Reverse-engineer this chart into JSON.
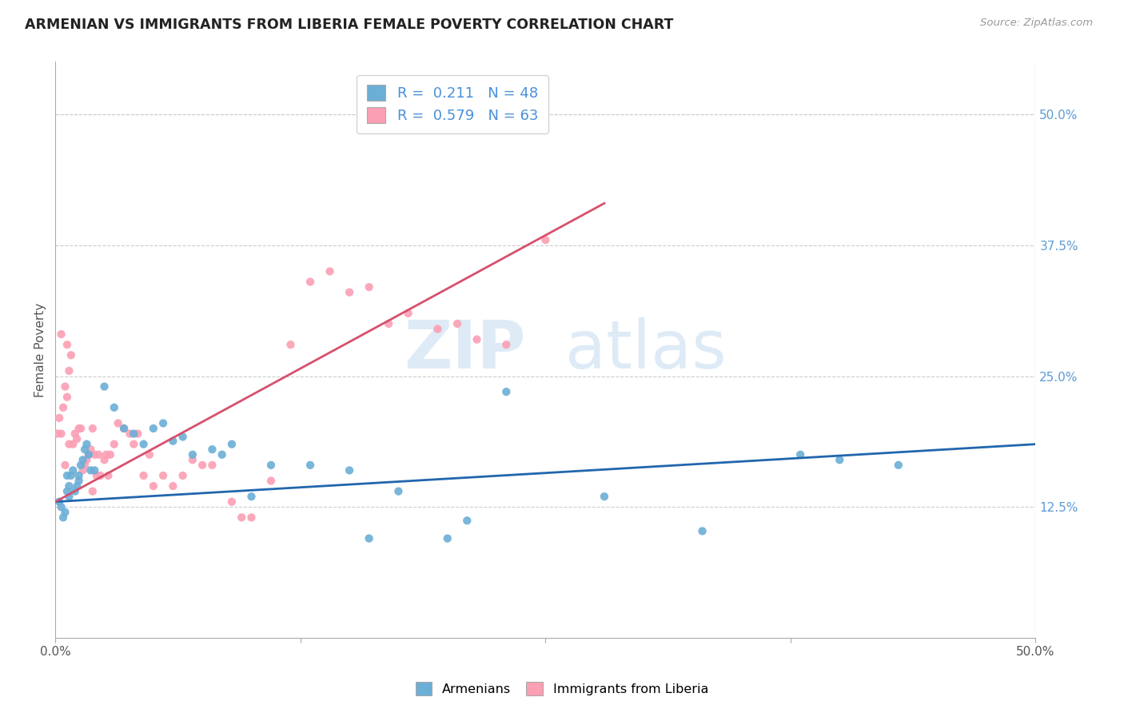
{
  "title": "ARMENIAN VS IMMIGRANTS FROM LIBERIA FEMALE POVERTY CORRELATION CHART",
  "source": "Source: ZipAtlas.com",
  "ylabel": "Female Poverty",
  "ytick_values": [
    0.125,
    0.25,
    0.375,
    0.5
  ],
  "xlim": [
    0.0,
    0.5
  ],
  "ylim": [
    0.0,
    0.55
  ],
  "legend_r_armenian": "0.211",
  "legend_n_armenian": "48",
  "legend_r_liberia": "0.579",
  "legend_n_liberia": "63",
  "armenian_color": "#6baed6",
  "liberia_color": "#fb9fb4",
  "armenian_line_color": "#2166ac",
  "liberia_line_color": "#d6506e",
  "background_color": "#ffffff",
  "watermark_zip": "ZIP",
  "watermark_atlas": "atlas",
  "armenian_x": [
    0.002,
    0.003,
    0.004,
    0.005,
    0.006,
    0.006,
    0.007,
    0.007,
    0.008,
    0.009,
    0.01,
    0.011,
    0.012,
    0.012,
    0.013,
    0.014,
    0.015,
    0.016,
    0.017,
    0.018,
    0.02,
    0.025,
    0.03,
    0.035,
    0.04,
    0.045,
    0.05,
    0.055,
    0.06,
    0.065,
    0.07,
    0.08,
    0.085,
    0.09,
    0.1,
    0.11,
    0.13,
    0.15,
    0.16,
    0.175,
    0.2,
    0.21,
    0.23,
    0.28,
    0.33,
    0.38,
    0.4,
    0.43
  ],
  "armenian_y": [
    0.13,
    0.125,
    0.115,
    0.12,
    0.14,
    0.155,
    0.135,
    0.145,
    0.155,
    0.16,
    0.14,
    0.145,
    0.155,
    0.15,
    0.165,
    0.17,
    0.18,
    0.185,
    0.175,
    0.16,
    0.16,
    0.24,
    0.22,
    0.2,
    0.195,
    0.185,
    0.2,
    0.205,
    0.188,
    0.192,
    0.175,
    0.18,
    0.175,
    0.185,
    0.135,
    0.165,
    0.165,
    0.16,
    0.095,
    0.14,
    0.095,
    0.112,
    0.235,
    0.135,
    0.102,
    0.175,
    0.17,
    0.165
  ],
  "liberia_x": [
    0.001,
    0.002,
    0.003,
    0.003,
    0.004,
    0.005,
    0.005,
    0.006,
    0.006,
    0.007,
    0.007,
    0.008,
    0.009,
    0.01,
    0.011,
    0.012,
    0.013,
    0.014,
    0.015,
    0.016,
    0.017,
    0.018,
    0.019,
    0.019,
    0.02,
    0.021,
    0.022,
    0.023,
    0.025,
    0.026,
    0.027,
    0.028,
    0.03,
    0.032,
    0.035,
    0.038,
    0.04,
    0.042,
    0.045,
    0.048,
    0.05,
    0.055,
    0.06,
    0.065,
    0.07,
    0.075,
    0.08,
    0.09,
    0.095,
    0.1,
    0.11,
    0.12,
    0.13,
    0.14,
    0.15,
    0.16,
    0.17,
    0.18,
    0.195,
    0.205,
    0.215,
    0.23,
    0.25
  ],
  "liberia_y": [
    0.195,
    0.21,
    0.195,
    0.29,
    0.22,
    0.24,
    0.165,
    0.23,
    0.28,
    0.185,
    0.255,
    0.27,
    0.185,
    0.195,
    0.19,
    0.2,
    0.2,
    0.16,
    0.165,
    0.17,
    0.175,
    0.18,
    0.2,
    0.14,
    0.175,
    0.155,
    0.175,
    0.155,
    0.17,
    0.175,
    0.155,
    0.175,
    0.185,
    0.205,
    0.2,
    0.195,
    0.185,
    0.195,
    0.155,
    0.175,
    0.145,
    0.155,
    0.145,
    0.155,
    0.17,
    0.165,
    0.165,
    0.13,
    0.115,
    0.115,
    0.15,
    0.28,
    0.34,
    0.35,
    0.33,
    0.335,
    0.3,
    0.31,
    0.295,
    0.3,
    0.285,
    0.28,
    0.38
  ],
  "armenian_line_x0": 0.0,
  "armenian_line_x1": 0.5,
  "armenian_line_y0": 0.13,
  "armenian_line_y1": 0.185,
  "liberia_line_x0": 0.0,
  "liberia_line_x1": 0.28,
  "liberia_line_y0": 0.13,
  "liberia_line_y1": 0.415
}
